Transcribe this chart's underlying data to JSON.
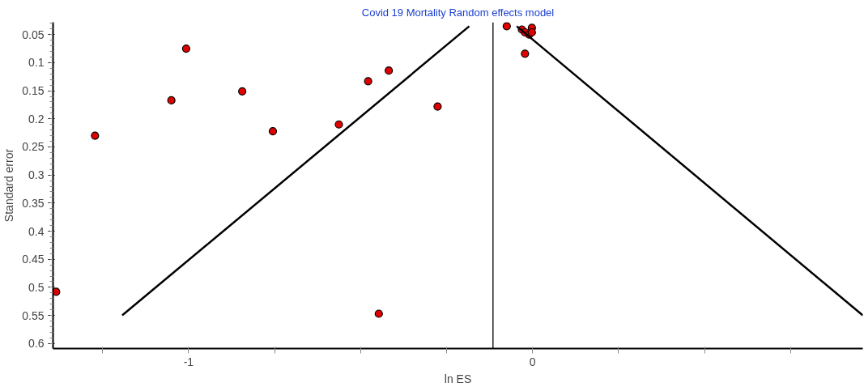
{
  "chart_data": {
    "type": "scatter",
    "title": "Covid 19 Mortality Random effects model",
    "xlabel": "ln ES",
    "ylabel": "Standard error",
    "xlim": [
      -1.394,
      0.96
    ],
    "ylim": [
      0.609,
      0.028
    ],
    "xticks": [
      {
        "value": -1.25,
        "label": null
      },
      -1,
      {
        "value": -0.75,
        "label": null
      },
      {
        "value": -0.5,
        "label": null
      },
      {
        "value": -0.25,
        "label": null
      },
      0,
      {
        "value": 0.25,
        "label": null
      },
      {
        "value": 0.5,
        "label": null
      },
      {
        "value": 0.75,
        "label": null
      }
    ],
    "yticks": [
      0.05,
      0.1,
      0.15,
      0.2,
      0.25,
      0.3,
      0.35,
      0.4,
      0.45,
      0.5,
      0.55,
      0.6
    ],
    "grid": false,
    "marker": "circle",
    "ref_lines": [
      {
        "axis": "x",
        "value": -0.115,
        "label": null,
        "color": "#000000"
      }
    ],
    "series": [
      {
        "color": "#e00000",
        "x": [
          -1.385,
          -1.272,
          -1.007,
          -1.05,
          -0.844,
          -0.755,
          -0.563,
          -0.478,
          -0.418,
          -0.276,
          -0.447,
          -0.075,
          -0.031,
          -0.022,
          -0.01,
          -0.002,
          -0.002,
          -0.022
        ],
        "values": [
          0.508,
          0.23,
          0.075,
          0.167,
          0.151,
          0.222,
          0.21,
          0.133,
          0.114,
          0.178,
          0.547,
          0.035,
          0.041,
          0.046,
          0.05,
          0.038,
          0.046,
          0.084
        ]
      },
      {
        "type": "line",
        "color": "#000000",
        "marker": "none",
        "line_style": "solid",
        "x": [
          -1.193,
          -0.184
        ],
        "values": [
          0.55,
          0.035
        ]
      },
      {
        "type": "line",
        "color": "#000000",
        "marker": "none",
        "line_style": "solid",
        "x": [
          -0.046,
          0.96
        ],
        "values": [
          0.035,
          0.55
        ]
      }
    ]
  }
}
